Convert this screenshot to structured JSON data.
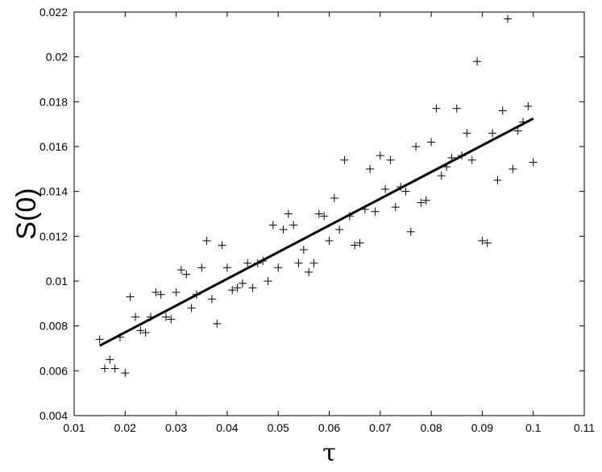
{
  "chart_data": {
    "type": "scatter",
    "title": "",
    "xlabel": "τ",
    "ylabel": "S(0)",
    "xlim": [
      0.01,
      0.11
    ],
    "ylim": [
      0.004,
      0.022
    ],
    "xticks": [
      0.01,
      0.02,
      0.03,
      0.04,
      0.05,
      0.06,
      0.07,
      0.08,
      0.09,
      0.1,
      0.11
    ],
    "xtick_labels": [
      "0.01",
      "0.02",
      "0.03",
      "0.04",
      "0.05",
      "0.06",
      "0.07",
      "0.08",
      "0.09",
      "0.1",
      "0.11"
    ],
    "yticks": [
      0.004,
      0.006,
      0.008,
      0.01,
      0.012,
      0.014,
      0.016,
      0.018,
      0.02,
      0.022
    ],
    "ytick_labels": [
      "0.004",
      "0.006",
      "0.008",
      "0.01",
      "0.012",
      "0.014",
      "0.016",
      "0.018",
      "0.02",
      "0.022"
    ],
    "grid": false,
    "marker": "+",
    "points": [
      [
        0.015,
        0.0074
      ],
      [
        0.016,
        0.0061
      ],
      [
        0.017,
        0.0065
      ],
      [
        0.018,
        0.0061
      ],
      [
        0.019,
        0.0075
      ],
      [
        0.02,
        0.0059
      ],
      [
        0.021,
        0.0093
      ],
      [
        0.022,
        0.0084
      ],
      [
        0.023,
        0.0078
      ],
      [
        0.024,
        0.0077
      ],
      [
        0.025,
        0.0084
      ],
      [
        0.026,
        0.0095
      ],
      [
        0.027,
        0.0094
      ],
      [
        0.028,
        0.0084
      ],
      [
        0.029,
        0.0083
      ],
      [
        0.03,
        0.0095
      ],
      [
        0.031,
        0.0105
      ],
      [
        0.032,
        0.0103
      ],
      [
        0.033,
        0.0088
      ],
      [
        0.034,
        0.0094
      ],
      [
        0.035,
        0.0106
      ],
      [
        0.036,
        0.0118
      ],
      [
        0.037,
        0.0092
      ],
      [
        0.038,
        0.0081
      ],
      [
        0.039,
        0.0116
      ],
      [
        0.04,
        0.0106
      ],
      [
        0.041,
        0.0096
      ],
      [
        0.042,
        0.0097
      ],
      [
        0.043,
        0.0099
      ],
      [
        0.044,
        0.0108
      ],
      [
        0.045,
        0.0097
      ],
      [
        0.046,
        0.0108
      ],
      [
        0.047,
        0.0109
      ],
      [
        0.048,
        0.01
      ],
      [
        0.049,
        0.0125
      ],
      [
        0.05,
        0.0106
      ],
      [
        0.051,
        0.0123
      ],
      [
        0.052,
        0.013
      ],
      [
        0.053,
        0.0125
      ],
      [
        0.054,
        0.0108
      ],
      [
        0.055,
        0.0114
      ],
      [
        0.056,
        0.0104
      ],
      [
        0.057,
        0.0108
      ],
      [
        0.058,
        0.013
      ],
      [
        0.059,
        0.0129
      ],
      [
        0.06,
        0.0118
      ],
      [
        0.061,
        0.0137
      ],
      [
        0.062,
        0.0123
      ],
      [
        0.063,
        0.0154
      ],
      [
        0.064,
        0.0129
      ],
      [
        0.065,
        0.0116
      ],
      [
        0.066,
        0.0117
      ],
      [
        0.067,
        0.0132
      ],
      [
        0.068,
        0.015
      ],
      [
        0.069,
        0.0131
      ],
      [
        0.07,
        0.0156
      ],
      [
        0.071,
        0.0141
      ],
      [
        0.072,
        0.0154
      ],
      [
        0.073,
        0.0133
      ],
      [
        0.074,
        0.0142
      ],
      [
        0.075,
        0.014
      ],
      [
        0.076,
        0.0122
      ],
      [
        0.077,
        0.016
      ],
      [
        0.078,
        0.0135
      ],
      [
        0.079,
        0.0136
      ],
      [
        0.08,
        0.0162
      ],
      [
        0.081,
        0.0177
      ],
      [
        0.082,
        0.0147
      ],
      [
        0.083,
        0.0151
      ],
      [
        0.084,
        0.0155
      ],
      [
        0.085,
        0.0177
      ],
      [
        0.086,
        0.0156
      ],
      [
        0.087,
        0.0166
      ],
      [
        0.088,
        0.0154
      ],
      [
        0.089,
        0.0198
      ],
      [
        0.09,
        0.0118
      ],
      [
        0.091,
        0.0117
      ],
      [
        0.092,
        0.0166
      ],
      [
        0.093,
        0.0145
      ],
      [
        0.094,
        0.0176
      ],
      [
        0.095,
        0.0217
      ],
      [
        0.096,
        0.015
      ],
      [
        0.097,
        0.0167
      ],
      [
        0.098,
        0.0171
      ],
      [
        0.099,
        0.0178
      ],
      [
        0.1,
        0.0153
      ]
    ],
    "fit_line": {
      "x": [
        0.015,
        0.1
      ],
      "y": [
        0.00712,
        0.01725
      ]
    }
  }
}
